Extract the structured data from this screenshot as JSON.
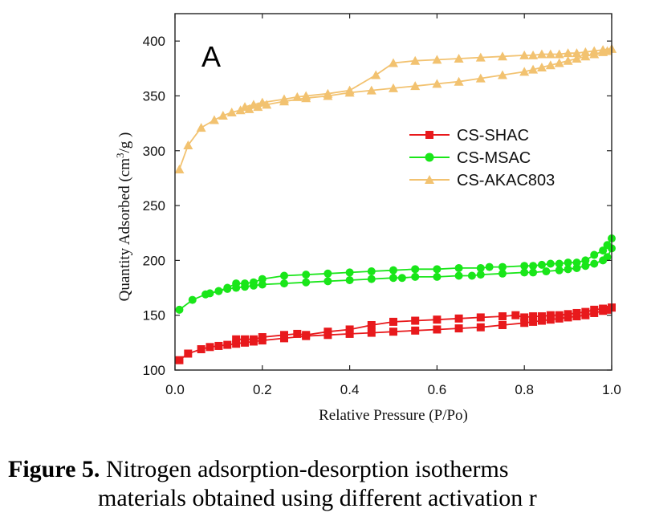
{
  "chart_data": {
    "type": "line",
    "panel_label": "A",
    "xlabel": "Relative Pressure (P/Po)",
    "ylabel_prefix": "Quantity Adsorbed (cm",
    "ylabel_sup": "3",
    "ylabel_suffix": "/g )",
    "xlim": [
      0.0,
      1.0
    ],
    "ylim": [
      100,
      425
    ],
    "xticks": [
      "0.0",
      "0.2",
      "0.4",
      "0.6",
      "0.8",
      "1.0"
    ],
    "yticks": [
      "100",
      "150",
      "200",
      "250",
      "300",
      "350",
      "400"
    ],
    "grid": false,
    "legend_position": "center-right",
    "series": [
      {
        "name": "CS-SHAC",
        "color": "#e8191c",
        "marker": "square",
        "adsorption": {
          "x": [
            0.01,
            0.03,
            0.06,
            0.08,
            0.1,
            0.12,
            0.14,
            0.16,
            0.18,
            0.2,
            0.25,
            0.3,
            0.35,
            0.4,
            0.45,
            0.5,
            0.55,
            0.6,
            0.65,
            0.7,
            0.75,
            0.8,
            0.82,
            0.84,
            0.86,
            0.88,
            0.9,
            0.92,
            0.94,
            0.96,
            0.98,
            0.99,
            1.0
          ],
          "y": [
            109,
            115,
            119,
            121,
            122,
            123,
            124,
            125,
            126,
            127,
            129,
            131,
            132,
            133,
            134,
            135,
            136,
            137,
            138,
            139,
            141,
            143,
            144,
            145,
            146,
            147,
            148,
            149,
            150,
            152,
            154,
            155,
            157
          ]
        },
        "desorption": {
          "x": [
            1.0,
            0.98,
            0.96,
            0.94,
            0.92,
            0.9,
            0.88,
            0.86,
            0.84,
            0.82,
            0.8,
            0.78,
            0.75,
            0.7,
            0.65,
            0.6,
            0.55,
            0.5,
            0.45,
            0.4,
            0.35,
            0.3,
            0.28,
            0.25,
            0.2,
            0.18,
            0.16,
            0.14
          ],
          "y": [
            157,
            156,
            155,
            153,
            152,
            151,
            150,
            150,
            149,
            149,
            148,
            150,
            149,
            148,
            147,
            146,
            145,
            144,
            141,
            137,
            135,
            132,
            133,
            132,
            130,
            128,
            128,
            128
          ]
        }
      },
      {
        "name": "CS-MSAC",
        "color": "#19e619",
        "marker": "circle",
        "adsorption": {
          "x": [
            0.01,
            0.04,
            0.07,
            0.1,
            0.12,
            0.14,
            0.16,
            0.18,
            0.2,
            0.25,
            0.3,
            0.35,
            0.4,
            0.45,
            0.5,
            0.52,
            0.55,
            0.6,
            0.65,
            0.68,
            0.7,
            0.75,
            0.8,
            0.82,
            0.85,
            0.88,
            0.9,
            0.92,
            0.94,
            0.96,
            0.98,
            0.99,
            1.0
          ],
          "y": [
            155,
            164,
            169,
            172,
            174,
            175,
            176,
            177,
            178,
            179,
            180,
            181,
            182,
            183,
            184,
            184,
            185,
            185,
            186,
            186,
            187,
            188,
            189,
            189,
            190,
            191,
            192,
            193,
            195,
            197,
            200,
            203,
            211
          ]
        },
        "desorption": {
          "x": [
            1.0,
            0.99,
            0.98,
            0.96,
            0.94,
            0.92,
            0.9,
            0.88,
            0.86,
            0.84,
            0.82,
            0.8,
            0.75,
            0.72,
            0.7,
            0.65,
            0.6,
            0.55,
            0.5,
            0.45,
            0.4,
            0.35,
            0.3,
            0.25,
            0.2,
            0.18,
            0.16,
            0.14,
            0.12,
            0.1,
            0.08
          ],
          "y": [
            220,
            214,
            209,
            205,
            200,
            198,
            198,
            197,
            197,
            196,
            195,
            195,
            194,
            194,
            193,
            193,
            192,
            192,
            191,
            190,
            189,
            188,
            187,
            186,
            183,
            180,
            179,
            179,
            175,
            172,
            170
          ]
        }
      },
      {
        "name": "CS-AKAC803",
        "color": "#f2c270",
        "marker": "triangle",
        "adsorption": {
          "x": [
            0.01,
            0.03,
            0.06,
            0.09,
            0.11,
            0.13,
            0.15,
            0.17,
            0.19,
            0.21,
            0.25,
            0.3,
            0.35,
            0.4,
            0.45,
            0.5,
            0.55,
            0.6,
            0.65,
            0.7,
            0.75,
            0.8,
            0.82,
            0.84,
            0.86,
            0.88,
            0.9,
            0.92,
            0.94,
            0.96,
            0.98,
            0.99,
            1.0
          ],
          "y": [
            283,
            305,
            321,
            328,
            332,
            335,
            337,
            338,
            340,
            342,
            345,
            348,
            350,
            353,
            355,
            357,
            359,
            361,
            363,
            366,
            369,
            372,
            374,
            376,
            378,
            380,
            382,
            384,
            386,
            388,
            390,
            391,
            393
          ]
        },
        "desorption": {
          "x": [
            1.0,
            0.98,
            0.96,
            0.94,
            0.92,
            0.9,
            0.88,
            0.86,
            0.84,
            0.82,
            0.8,
            0.75,
            0.7,
            0.65,
            0.6,
            0.55,
            0.5,
            0.46,
            0.4,
            0.35,
            0.3,
            0.28,
            0.25,
            0.2,
            0.18,
            0.16
          ],
          "y": [
            393,
            392,
            391,
            390,
            389,
            389,
            388,
            388,
            388,
            387,
            387,
            386,
            385,
            384,
            383,
            382,
            380,
            369,
            355,
            352,
            350,
            349,
            347,
            344,
            342,
            340
          ]
        }
      }
    ]
  },
  "caption": {
    "bold": "Figure 5.",
    "line1": " Nitrogen adsorption-desorption isotherms",
    "line2": "materials obtained using different activation r"
  }
}
